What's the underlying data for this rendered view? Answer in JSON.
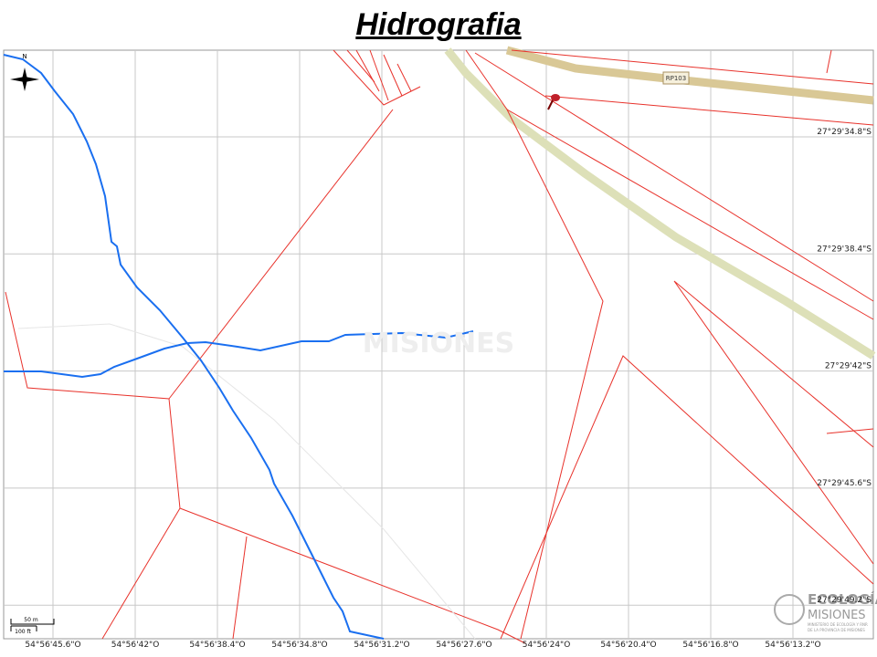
{
  "header": {
    "title": "Hidrografia"
  },
  "map": {
    "north": "N",
    "road_label": "RP103",
    "watermark": "MISIONES",
    "scale": {
      "metric": "50 m",
      "imperial": "100 ft"
    },
    "latitude_labels": [
      "27°29'34.8\"S",
      "27°29'38.4\"S",
      "27°29'42\"S",
      "27°29'45.6\"S",
      "27°29'49.2\"S"
    ],
    "longitude_labels": [
      "54°56'45.6\"O",
      "54°56'42\"O",
      "54°56'38.4\"O",
      "54°56'34.8\"O",
      "54°56'31.2\"O",
      "54°56'27.6\"O",
      "54°56'24\"O",
      "54°56'20.4\"O",
      "54°56'16.8\"O",
      "54°56'13.2\"O"
    ],
    "logo": {
      "line1": "ECOLOGÍA",
      "line2": "MISIONES",
      "line3": "MINISTERIO DE ECOLOGÍA Y RNR",
      "line4": "DE LA PROVINCIA DE MISIONES"
    }
  }
}
